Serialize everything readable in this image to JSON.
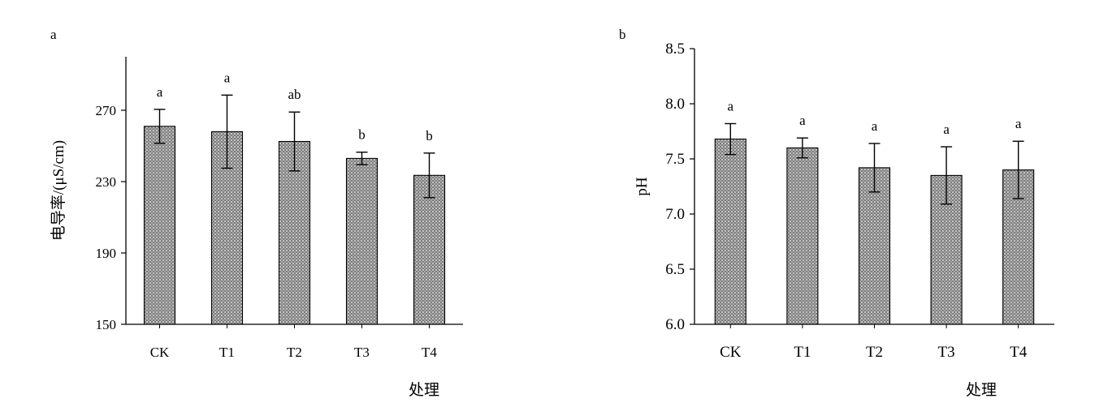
{
  "chart_data": [
    {
      "type": "bar",
      "panel_label": "a",
      "categories": [
        "CK",
        "T1",
        "T2",
        "T3",
        "T4"
      ],
      "values": [
        261,
        258,
        252.5,
        243,
        233.5
      ],
      "errors": [
        9.5,
        20.5,
        16.5,
        3.5,
        12.5
      ],
      "significance": [
        "a",
        "a",
        "ab",
        "b",
        "b"
      ],
      "ylabel": "电导率/(μS/cm)",
      "xlabel": "处理",
      "ylim": [
        150,
        300
      ],
      "yticks": [
        "150",
        "190",
        "230",
        "270"
      ],
      "grid": false
    },
    {
      "type": "bar",
      "panel_label": "b",
      "categories": [
        "CK",
        "T1",
        "T2",
        "T3",
        "T4"
      ],
      "values": [
        7.68,
        7.6,
        7.42,
        7.35,
        7.4
      ],
      "errors": [
        0.14,
        0.09,
        0.22,
        0.26,
        0.26
      ],
      "significance": [
        "a",
        "a",
        "a",
        "a",
        "a"
      ],
      "ylabel": "pH",
      "xlabel": "处理",
      "ylim": [
        6.0,
        8.5
      ],
      "yticks": [
        "6.0",
        "6.5",
        "7.0",
        "7.5",
        "8.0",
        "8.5"
      ],
      "grid": false
    }
  ]
}
